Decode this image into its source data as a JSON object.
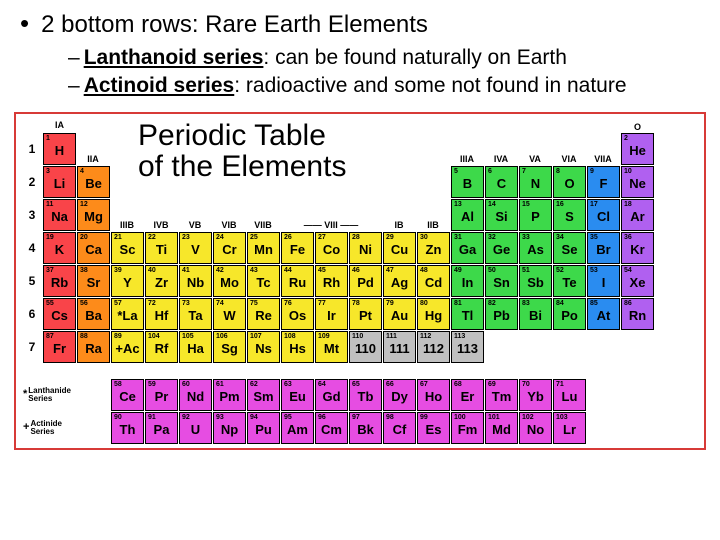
{
  "bullet": "2 bottom rows: Rare Earth Elements",
  "sub1": {
    "term": "Lanthanoid series",
    "rest": ": can be found naturally on Earth"
  },
  "sub2": {
    "term": "Actinoid series",
    "rest": ": radioactive and some not found in nature"
  },
  "title_line1": "Periodic Table",
  "title_line2": "of the Elements",
  "group_labels": {
    "IA": "IA",
    "IIA": "IIA",
    "IIIB": "IIIB",
    "IVB": "IVB",
    "VB": "VB",
    "VIB": "VIB",
    "VIIB": "VIIB",
    "VIII": "VIII",
    "IB": "IB",
    "IIB": "IIB",
    "IIIA": "IIIA",
    "IVA": "IVA",
    "VA": "VA",
    "VIA": "VIA",
    "VIIA": "VIIA",
    "O": "O"
  },
  "rows": [
    "1",
    "2",
    "3",
    "4",
    "5",
    "6",
    "7"
  ],
  "lanthanide_label": "Lanthanide\nSeries",
  "actinide_label": "Actinide\nSeries",
  "colors": {
    "red": "#f94449",
    "orange": "#fd8b1a",
    "yellow": "#f7e72a",
    "green": "#3dd94a",
    "blue": "#2a8cf0",
    "purple": "#e64de2",
    "gray": "#c0c0c0",
    "violet": "#b060f0",
    "border": "#d73a37"
  },
  "elements": [
    {
      "n": "1",
      "s": "H",
      "r": 1,
      "c": 1,
      "cl": "red"
    },
    {
      "n": "2",
      "s": "He",
      "r": 1,
      "c": 18,
      "cl": "violet"
    },
    {
      "n": "3",
      "s": "Li",
      "r": 2,
      "c": 1,
      "cl": "red"
    },
    {
      "n": "4",
      "s": "Be",
      "r": 2,
      "c": 2,
      "cl": "orange"
    },
    {
      "n": "5",
      "s": "B",
      "r": 2,
      "c": 13,
      "cl": "green"
    },
    {
      "n": "6",
      "s": "C",
      "r": 2,
      "c": 14,
      "cl": "green"
    },
    {
      "n": "7",
      "s": "N",
      "r": 2,
      "c": 15,
      "cl": "green"
    },
    {
      "n": "8",
      "s": "O",
      "r": 2,
      "c": 16,
      "cl": "green"
    },
    {
      "n": "9",
      "s": "F",
      "r": 2,
      "c": 17,
      "cl": "blue"
    },
    {
      "n": "10",
      "s": "Ne",
      "r": 2,
      "c": 18,
      "cl": "violet"
    },
    {
      "n": "11",
      "s": "Na",
      "r": 3,
      "c": 1,
      "cl": "red"
    },
    {
      "n": "12",
      "s": "Mg",
      "r": 3,
      "c": 2,
      "cl": "orange"
    },
    {
      "n": "13",
      "s": "Al",
      "r": 3,
      "c": 13,
      "cl": "green"
    },
    {
      "n": "14",
      "s": "Si",
      "r": 3,
      "c": 14,
      "cl": "green"
    },
    {
      "n": "15",
      "s": "P",
      "r": 3,
      "c": 15,
      "cl": "green"
    },
    {
      "n": "16",
      "s": "S",
      "r": 3,
      "c": 16,
      "cl": "green"
    },
    {
      "n": "17",
      "s": "Cl",
      "r": 3,
      "c": 17,
      "cl": "blue"
    },
    {
      "n": "18",
      "s": "Ar",
      "r": 3,
      "c": 18,
      "cl": "violet"
    },
    {
      "n": "19",
      "s": "K",
      "r": 4,
      "c": 1,
      "cl": "red"
    },
    {
      "n": "20",
      "s": "Ca",
      "r": 4,
      "c": 2,
      "cl": "orange"
    },
    {
      "n": "21",
      "s": "Sc",
      "r": 4,
      "c": 3,
      "cl": "yellow"
    },
    {
      "n": "22",
      "s": "Ti",
      "r": 4,
      "c": 4,
      "cl": "yellow"
    },
    {
      "n": "23",
      "s": "V",
      "r": 4,
      "c": 5,
      "cl": "yellow"
    },
    {
      "n": "24",
      "s": "Cr",
      "r": 4,
      "c": 6,
      "cl": "yellow"
    },
    {
      "n": "25",
      "s": "Mn",
      "r": 4,
      "c": 7,
      "cl": "yellow"
    },
    {
      "n": "26",
      "s": "Fe",
      "r": 4,
      "c": 8,
      "cl": "yellow"
    },
    {
      "n": "27",
      "s": "Co",
      "r": 4,
      "c": 9,
      "cl": "yellow"
    },
    {
      "n": "28",
      "s": "Ni",
      "r": 4,
      "c": 10,
      "cl": "yellow"
    },
    {
      "n": "29",
      "s": "Cu",
      "r": 4,
      "c": 11,
      "cl": "yellow"
    },
    {
      "n": "30",
      "s": "Zn",
      "r": 4,
      "c": 12,
      "cl": "yellow"
    },
    {
      "n": "31",
      "s": "Ga",
      "r": 4,
      "c": 13,
      "cl": "green"
    },
    {
      "n": "32",
      "s": "Ge",
      "r": 4,
      "c": 14,
      "cl": "green"
    },
    {
      "n": "33",
      "s": "As",
      "r": 4,
      "c": 15,
      "cl": "green"
    },
    {
      "n": "34",
      "s": "Se",
      "r": 4,
      "c": 16,
      "cl": "green"
    },
    {
      "n": "35",
      "s": "Br",
      "r": 4,
      "c": 17,
      "cl": "blue"
    },
    {
      "n": "36",
      "s": "Kr",
      "r": 4,
      "c": 18,
      "cl": "violet"
    },
    {
      "n": "37",
      "s": "Rb",
      "r": 5,
      "c": 1,
      "cl": "red"
    },
    {
      "n": "38",
      "s": "Sr",
      "r": 5,
      "c": 2,
      "cl": "orange"
    },
    {
      "n": "39",
      "s": "Y",
      "r": 5,
      "c": 3,
      "cl": "yellow"
    },
    {
      "n": "40",
      "s": "Zr",
      "r": 5,
      "c": 4,
      "cl": "yellow"
    },
    {
      "n": "41",
      "s": "Nb",
      "r": 5,
      "c": 5,
      "cl": "yellow"
    },
    {
      "n": "42",
      "s": "Mo",
      "r": 5,
      "c": 6,
      "cl": "yellow"
    },
    {
      "n": "43",
      "s": "Tc",
      "r": 5,
      "c": 7,
      "cl": "yellow"
    },
    {
      "n": "44",
      "s": "Ru",
      "r": 5,
      "c": 8,
      "cl": "yellow"
    },
    {
      "n": "45",
      "s": "Rh",
      "r": 5,
      "c": 9,
      "cl": "yellow"
    },
    {
      "n": "46",
      "s": "Pd",
      "r": 5,
      "c": 10,
      "cl": "yellow"
    },
    {
      "n": "47",
      "s": "Ag",
      "r": 5,
      "c": 11,
      "cl": "yellow"
    },
    {
      "n": "48",
      "s": "Cd",
      "r": 5,
      "c": 12,
      "cl": "yellow"
    },
    {
      "n": "49",
      "s": "In",
      "r": 5,
      "c": 13,
      "cl": "green"
    },
    {
      "n": "50",
      "s": "Sn",
      "r": 5,
      "c": 14,
      "cl": "green"
    },
    {
      "n": "51",
      "s": "Sb",
      "r": 5,
      "c": 15,
      "cl": "green"
    },
    {
      "n": "52",
      "s": "Te",
      "r": 5,
      "c": 16,
      "cl": "green"
    },
    {
      "n": "53",
      "s": "I",
      "r": 5,
      "c": 17,
      "cl": "blue"
    },
    {
      "n": "54",
      "s": "Xe",
      "r": 5,
      "c": 18,
      "cl": "violet"
    },
    {
      "n": "55",
      "s": "Cs",
      "r": 6,
      "c": 1,
      "cl": "red"
    },
    {
      "n": "56",
      "s": "Ba",
      "r": 6,
      "c": 2,
      "cl": "orange"
    },
    {
      "n": "57",
      "s": "*La",
      "r": 6,
      "c": 3,
      "cl": "yellow"
    },
    {
      "n": "72",
      "s": "Hf",
      "r": 6,
      "c": 4,
      "cl": "yellow"
    },
    {
      "n": "73",
      "s": "Ta",
      "r": 6,
      "c": 5,
      "cl": "yellow"
    },
    {
      "n": "74",
      "s": "W",
      "r": 6,
      "c": 6,
      "cl": "yellow"
    },
    {
      "n": "75",
      "s": "Re",
      "r": 6,
      "c": 7,
      "cl": "yellow"
    },
    {
      "n": "76",
      "s": "Os",
      "r": 6,
      "c": 8,
      "cl": "yellow"
    },
    {
      "n": "77",
      "s": "Ir",
      "r": 6,
      "c": 9,
      "cl": "yellow"
    },
    {
      "n": "78",
      "s": "Pt",
      "r": 6,
      "c": 10,
      "cl": "yellow"
    },
    {
      "n": "79",
      "s": "Au",
      "r": 6,
      "c": 11,
      "cl": "yellow"
    },
    {
      "n": "80",
      "s": "Hg",
      "r": 6,
      "c": 12,
      "cl": "yellow"
    },
    {
      "n": "81",
      "s": "Tl",
      "r": 6,
      "c": 13,
      "cl": "green"
    },
    {
      "n": "82",
      "s": "Pb",
      "r": 6,
      "c": 14,
      "cl": "green"
    },
    {
      "n": "83",
      "s": "Bi",
      "r": 6,
      "c": 15,
      "cl": "green"
    },
    {
      "n": "84",
      "s": "Po",
      "r": 6,
      "c": 16,
      "cl": "green"
    },
    {
      "n": "85",
      "s": "At",
      "r": 6,
      "c": 17,
      "cl": "blue"
    },
    {
      "n": "86",
      "s": "Rn",
      "r": 6,
      "c": 18,
      "cl": "violet"
    },
    {
      "n": "87",
      "s": "Fr",
      "r": 7,
      "c": 1,
      "cl": "red"
    },
    {
      "n": "88",
      "s": "Ra",
      "r": 7,
      "c": 2,
      "cl": "orange"
    },
    {
      "n": "89",
      "s": "+Ac",
      "r": 7,
      "c": 3,
      "cl": "yellow"
    },
    {
      "n": "104",
      "s": "Rf",
      "r": 7,
      "c": 4,
      "cl": "yellow"
    },
    {
      "n": "105",
      "s": "Ha",
      "r": 7,
      "c": 5,
      "cl": "yellow"
    },
    {
      "n": "106",
      "s": "Sg",
      "r": 7,
      "c": 6,
      "cl": "yellow"
    },
    {
      "n": "107",
      "s": "Ns",
      "r": 7,
      "c": 7,
      "cl": "yellow"
    },
    {
      "n": "108",
      "s": "Hs",
      "r": 7,
      "c": 8,
      "cl": "yellow"
    },
    {
      "n": "109",
      "s": "Mt",
      "r": 7,
      "c": 9,
      "cl": "yellow"
    },
    {
      "n": "110",
      "s": "110",
      "r": 7,
      "c": 10,
      "cl": "gray"
    },
    {
      "n": "111",
      "s": "111",
      "r": 7,
      "c": 11,
      "cl": "gray"
    },
    {
      "n": "112",
      "s": "112",
      "r": 7,
      "c": 12,
      "cl": "gray"
    },
    {
      "n": "113",
      "s": "113",
      "r": 7,
      "c": 13,
      "cl": "gray"
    }
  ],
  "lanthanides": [
    {
      "n": "58",
      "s": "Ce"
    },
    {
      "n": "59",
      "s": "Pr"
    },
    {
      "n": "60",
      "s": "Nd"
    },
    {
      "n": "61",
      "s": "Pm"
    },
    {
      "n": "62",
      "s": "Sm"
    },
    {
      "n": "63",
      "s": "Eu"
    },
    {
      "n": "64",
      "s": "Gd"
    },
    {
      "n": "65",
      "s": "Tb"
    },
    {
      "n": "66",
      "s": "Dy"
    },
    {
      "n": "67",
      "s": "Ho"
    },
    {
      "n": "68",
      "s": "Er"
    },
    {
      "n": "69",
      "s": "Tm"
    },
    {
      "n": "70",
      "s": "Yb"
    },
    {
      "n": "71",
      "s": "Lu"
    }
  ],
  "actinides": [
    {
      "n": "90",
      "s": "Th"
    },
    {
      "n": "91",
      "s": "Pa"
    },
    {
      "n": "92",
      "s": "U"
    },
    {
      "n": "93",
      "s": "Np"
    },
    {
      "n": "94",
      "s": "Pu"
    },
    {
      "n": "95",
      "s": "Am"
    },
    {
      "n": "96",
      "s": "Cm"
    },
    {
      "n": "97",
      "s": "Bk"
    },
    {
      "n": "98",
      "s": "Cf"
    },
    {
      "n": "99",
      "s": "Es"
    },
    {
      "n": "100",
      "s": "Fm"
    },
    {
      "n": "101",
      "s": "Md"
    },
    {
      "n": "102",
      "s": "No"
    },
    {
      "n": "103",
      "s": "Lr"
    }
  ]
}
